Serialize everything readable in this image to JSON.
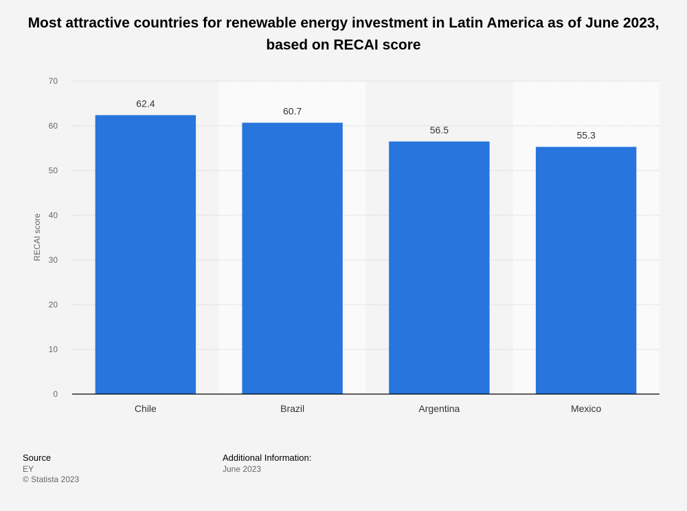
{
  "chart_data": {
    "type": "bar",
    "title": "Most attractive countries for renewable energy investment in Latin America as of June 2023, based on RECAI score",
    "categories": [
      "Chile",
      "Brazil",
      "Argentina",
      "Mexico"
    ],
    "values": [
      62.4,
      60.7,
      56.5,
      55.3
    ],
    "value_labels": [
      "62.4",
      "60.7",
      "56.5",
      "55.3"
    ],
    "xlabel": "",
    "ylabel": "RECAI score",
    "ylim": [
      0,
      70
    ],
    "yticks": [
      0,
      10,
      20,
      30,
      40,
      50,
      60,
      70
    ],
    "grid": true,
    "bar_color": "#2775dd"
  },
  "footer": {
    "source_label": "Source",
    "source_value": "EY",
    "copyright": "© Statista 2023",
    "additional_label": "Additional Information:",
    "additional_value": "June 2023"
  }
}
